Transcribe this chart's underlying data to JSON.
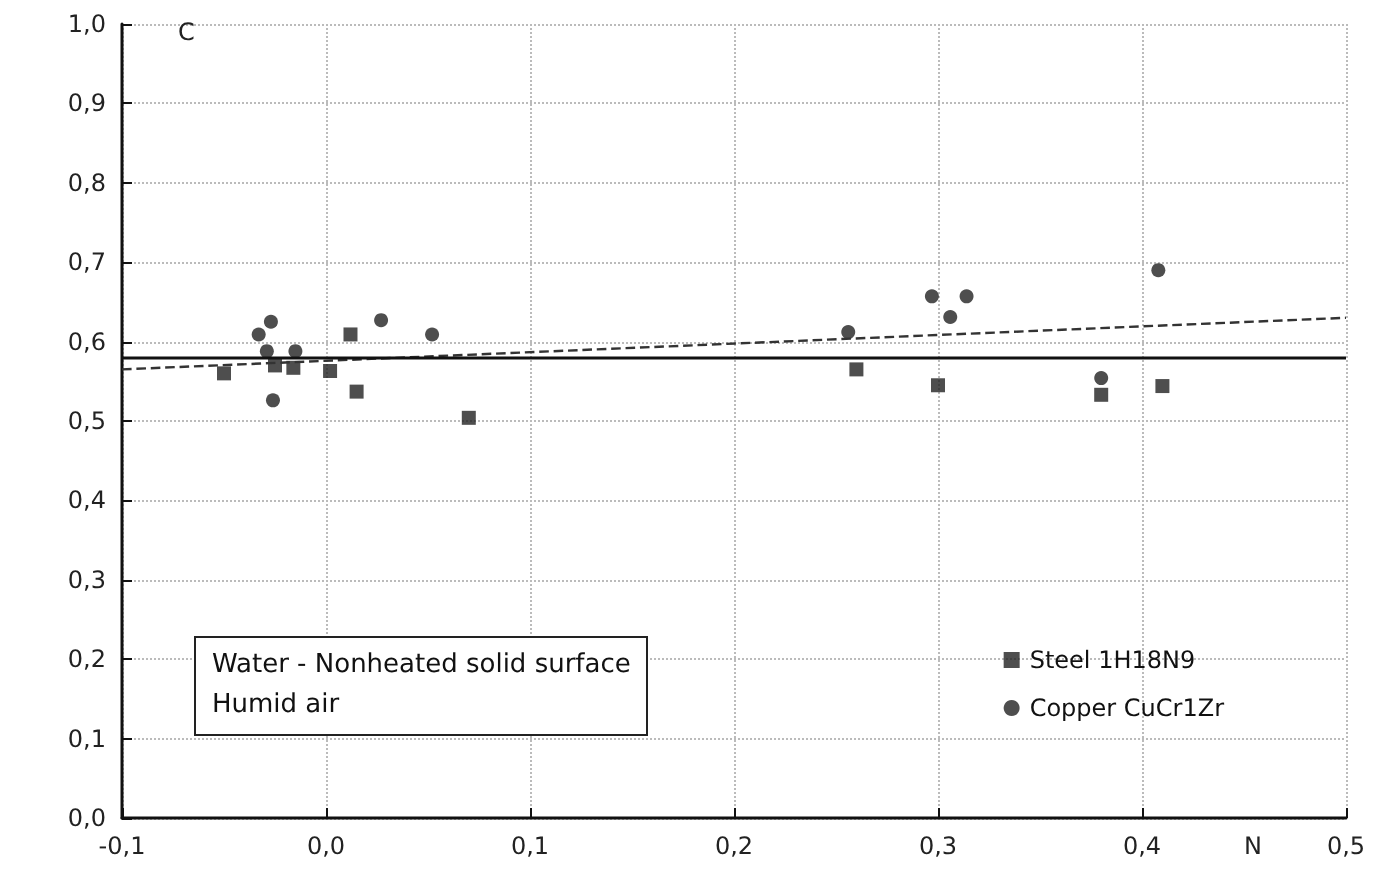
{
  "chart_data": {
    "type": "scatter",
    "xlabel": "N",
    "ylabel": "C",
    "annotations": [
      "Water - Nonheated solid surface",
      "Humid air"
    ],
    "series": [
      {
        "name": "Steel 1H18N9",
        "color": "#222222",
        "marker": "square",
        "x": [
          -0.05,
          -0.025,
          -0.016,
          0.002,
          0.012,
          0.015,
          0.07,
          0.26,
          0.3,
          0.38,
          0.41
        ],
        "values": [
          0.56,
          0.57,
          0.567,
          0.563,
          0.609,
          0.537,
          0.504,
          0.565,
          0.545,
          0.533,
          0.544
        ]
      },
      {
        "name": "Copper CuCr1Zr",
        "color": "#222222",
        "marker": "circle",
        "x": [
          -0.033,
          -0.027,
          -0.029,
          -0.026,
          -0.015,
          0.027,
          0.052,
          0.256,
          0.297,
          0.314,
          0.306,
          0.38,
          0.408
        ],
        "values": [
          0.609,
          0.625,
          0.588,
          0.526,
          0.588,
          0.627,
          0.609,
          0.612,
          0.657,
          0.657,
          0.631,
          0.554,
          0.69
        ]
      },
      {
        "type": "line",
        "color": "#333333",
        "line_style": "dashed",
        "marker": "none",
        "x": [
          -0.1,
          0.5
        ],
        "values": [
          0.565,
          0.63
        ]
      }
    ],
    "ref_lines": [
      {
        "axis": "y",
        "value": 0.58,
        "color": "#111111",
        "line_style": "solid"
      }
    ],
    "xlim": [
      -0.1,
      0.5
    ],
    "ylim": [
      0,
      1
    ],
    "xticks": [
      {
        "value": -0.1,
        "label": "-0,1"
      },
      {
        "value": 0,
        "label": "0,0"
      },
      {
        "value": 0.1,
        "label": "0,1"
      },
      {
        "value": 0.2,
        "label": "0,2"
      },
      {
        "value": 0.3,
        "label": "0,3"
      },
      {
        "value": 0.4,
        "label": "0,4"
      },
      {
        "value": 0.5,
        "label": "0,5"
      }
    ],
    "yticks": [
      {
        "value": 0,
        "label": "0,0"
      },
      {
        "value": 0.1,
        "label": "0,1"
      },
      {
        "value": 0.2,
        "label": "0,2"
      },
      {
        "value": 0.3,
        "label": "0,3"
      },
      {
        "value": 0.4,
        "label": "0,4"
      },
      {
        "value": 0.5,
        "label": "0,5"
      },
      {
        "value": 0.6,
        "label": "0,6"
      },
      {
        "value": 0.7,
        "label": "0,7"
      },
      {
        "value": 0.8,
        "label": "0,8"
      },
      {
        "value": 0.9,
        "label": "0,9"
      },
      {
        "value": 1,
        "label": "1,0"
      }
    ],
    "grid": true,
    "legend": "bottom right"
  }
}
